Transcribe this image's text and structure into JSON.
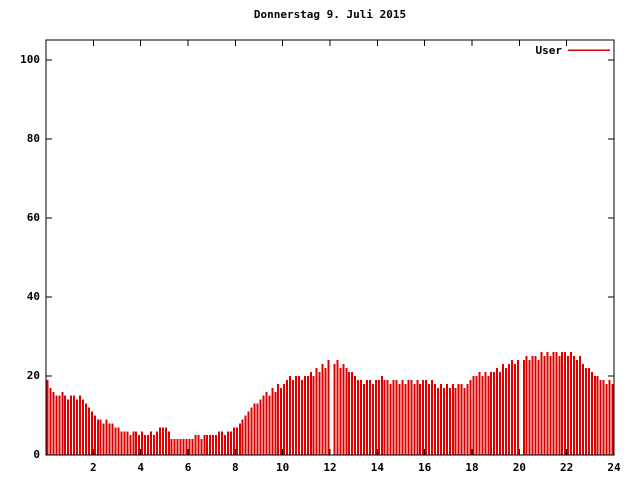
{
  "window": {
    "background": "#ffffff"
  },
  "chart_data": {
    "type": "bar",
    "title": "Donnerstag 9. Juli 2015",
    "series_name": "User",
    "bar_color": "#dd0000",
    "axis_color": "#000000",
    "legend_position": "top-right",
    "grid": false,
    "xlabel": "",
    "ylabel": "",
    "xlim": [
      0,
      24
    ],
    "ylim": [
      0,
      105
    ],
    "xticks": [
      2,
      4,
      6,
      8,
      10,
      12,
      14,
      16,
      18,
      20,
      22,
      24
    ],
    "xtick_labels": [
      "2",
      "4",
      "6",
      "8",
      "10",
      "12",
      "14",
      "16",
      "18",
      "20",
      "22",
      "24"
    ],
    "yticks": [
      0,
      20,
      40,
      60,
      80,
      100
    ],
    "ytick_labels": [
      "0",
      "20",
      "40",
      "60",
      "80",
      "100"
    ],
    "x_start": 0,
    "x_step_hours": 0.125,
    "values": [
      19,
      17,
      16,
      15,
      15,
      16,
      15,
      14,
      15,
      15,
      14,
      15,
      14,
      13,
      12,
      11,
      10,
      9,
      9,
      8,
      9,
      8,
      8,
      7,
      7,
      6,
      6,
      6,
      5,
      6,
      6,
      5,
      6,
      5,
      5,
      6,
      5,
      6,
      7,
      7,
      7,
      6,
      4,
      4,
      4,
      4,
      4,
      4,
      4,
      4,
      5,
      5,
      4,
      5,
      5,
      5,
      5,
      5,
      6,
      6,
      5,
      6,
      6,
      7,
      7,
      8,
      9,
      10,
      11,
      12,
      13,
      13,
      14,
      15,
      16,
      15,
      17,
      16,
      18,
      17,
      18,
      19,
      20,
      19,
      20,
      20,
      19,
      20,
      20,
      21,
      20,
      22,
      21,
      23,
      22,
      24,
      0,
      23,
      24,
      22,
      23,
      22,
      21,
      21,
      20,
      19,
      19,
      18,
      19,
      19,
      18,
      19,
      19,
      20,
      19,
      19,
      18,
      19,
      19,
      18,
      19,
      18,
      19,
      19,
      18,
      19,
      18,
      19,
      19,
      18,
      19,
      18,
      17,
      18,
      17,
      18,
      17,
      18,
      17,
      18,
      18,
      17,
      18,
      19,
      20,
      20,
      21,
      20,
      21,
      20,
      21,
      21,
      22,
      21,
      23,
      22,
      23,
      24,
      23,
      24,
      0,
      24,
      25,
      24,
      25,
      25,
      24,
      26,
      25,
      26,
      25,
      26,
      26,
      25,
      26,
      26,
      25,
      26,
      25,
      24,
      25,
      23,
      22,
      22,
      21,
      20,
      20,
      19,
      19,
      18,
      19,
      18
    ]
  }
}
